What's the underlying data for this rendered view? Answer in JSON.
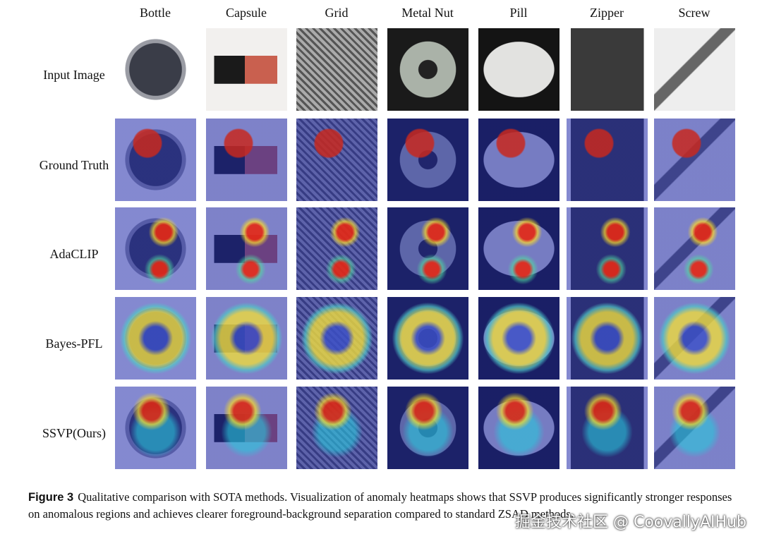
{
  "columns": [
    "Bottle",
    "Capsule",
    "Grid",
    "Metal Nut",
    "Pill",
    "Zipper",
    "Screw"
  ],
  "rows": [
    "Input Image",
    "Ground Truth",
    "AdaCLIP",
    "Bayes-PFL",
    "SSVP(Ours)"
  ],
  "caption": {
    "label": "Figure 3",
    "text": "Qualitative comparison with SOTA methods. Visualization of anomaly heatmaps shows that SSVP produces significantly stronger responses on anomalous regions and achieves clearer foreground-background separation compared to standard ZSAD methods."
  },
  "watermark": "掘金技术社区 @ CoovallyAIHub"
}
